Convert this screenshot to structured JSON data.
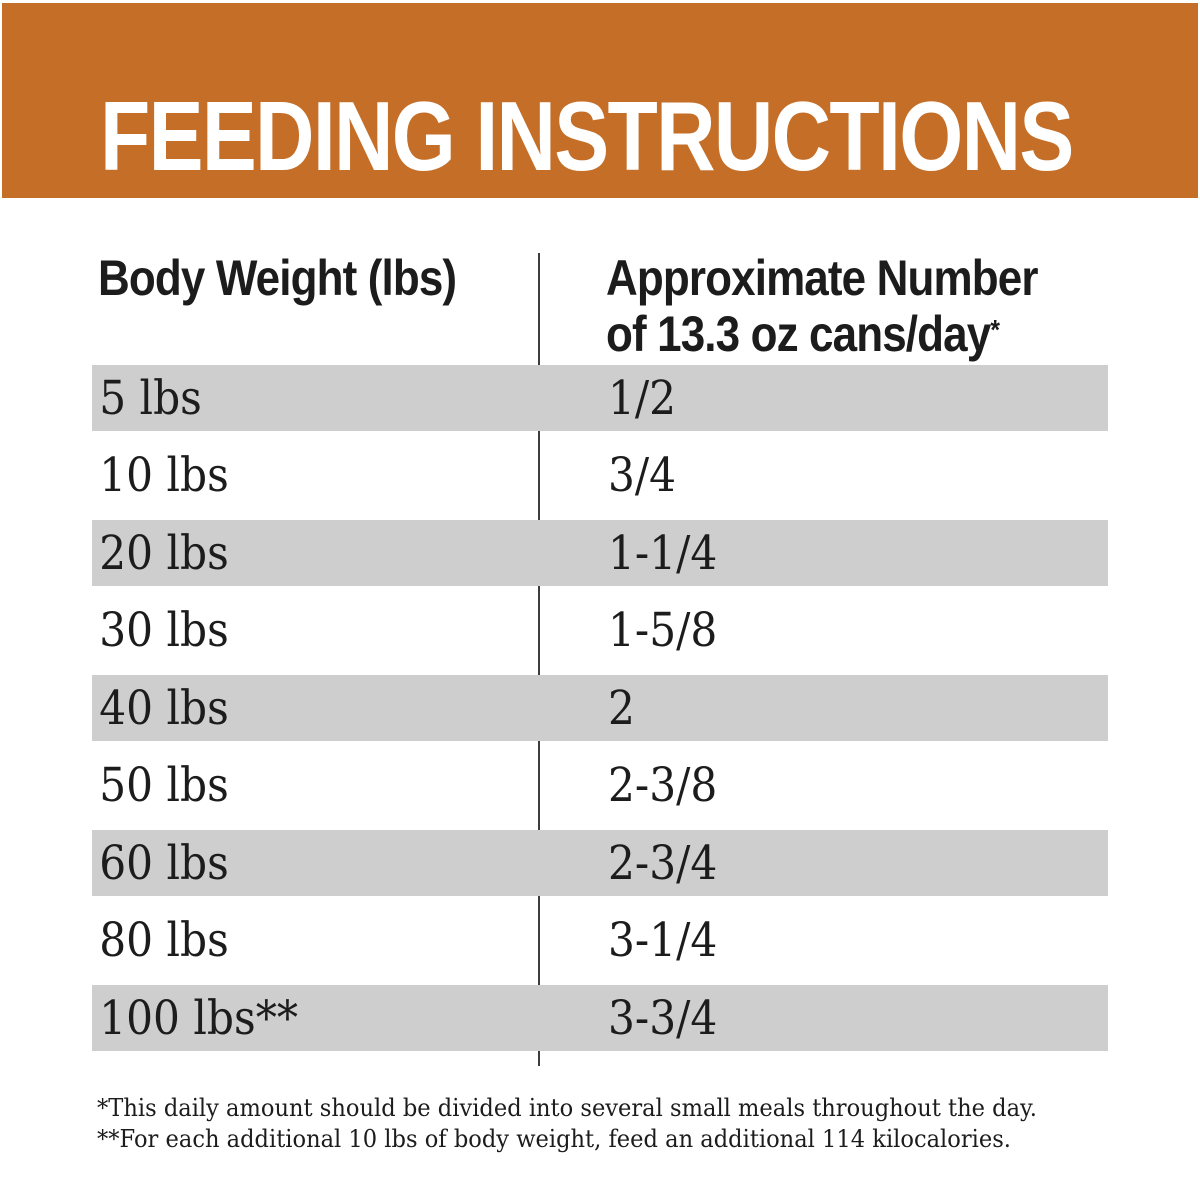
{
  "banner": {
    "title": "FEEDING INSTRUCTIONS"
  },
  "table": {
    "col1_header": "Body Weight (lbs)",
    "col2_header_line1": "Approximate Number",
    "col2_header_line2": "of 13.3 oz cans/day",
    "col2_header_sup": "*",
    "rows": [
      {
        "weight": "5 lbs",
        "cans": "1/2"
      },
      {
        "weight": "10 lbs",
        "cans": "3/4"
      },
      {
        "weight": "20 lbs",
        "cans": "1-1/4"
      },
      {
        "weight": "30 lbs",
        "cans": "1-5/8"
      },
      {
        "weight": "40 lbs",
        "cans": "2"
      },
      {
        "weight": "50 lbs",
        "cans": "2-3/8"
      },
      {
        "weight": "60 lbs",
        "cans": "2-3/4"
      },
      {
        "weight": "80 lbs",
        "cans": "3-1/4"
      },
      {
        "weight": "100 lbs**",
        "cans": "3-3/4"
      }
    ]
  },
  "footnotes": {
    "line1": "*This daily amount should be divided into several small meals throughout the day.",
    "line2": "**For each additional 10 lbs of body weight, feed an additional 114 kilocalories."
  },
  "colors": {
    "banner_orange": "#C46E27",
    "row_gray": "#CECECE",
    "text_black": "#1C1C1C",
    "divider_gray": "#3D3D3D"
  }
}
